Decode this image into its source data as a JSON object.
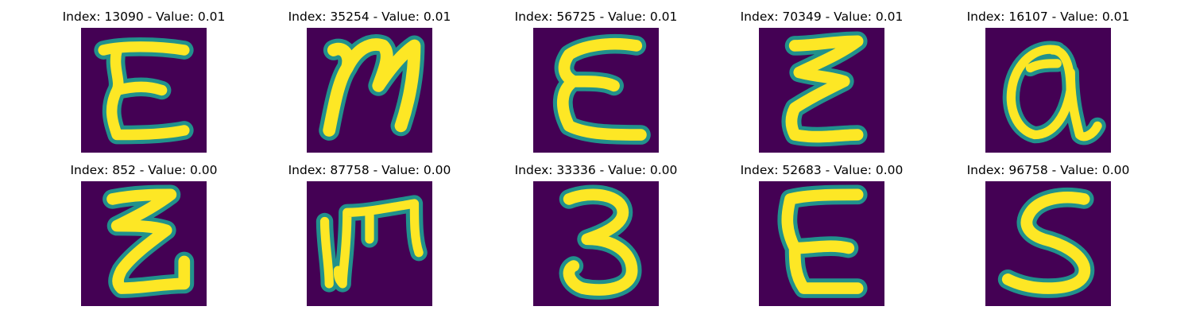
{
  "figure": {
    "colormap": "viridis",
    "background_color": "#440154",
    "stroke_outer_color": "#21918c",
    "stroke_inner_color": "#fde725",
    "panels": [
      {
        "title": "Index: 13090 - Value: 0.01",
        "glyph": "E-curly"
      },
      {
        "title": "Index: 35254 - Value: 0.01",
        "glyph": "N-script"
      },
      {
        "title": "Index: 56725 - Value: 0.01",
        "glyph": "E-round"
      },
      {
        "title": "Index: 70349 - Value: 0.01",
        "glyph": "Z-E-zigzag"
      },
      {
        "title": "Index: 16107 - Value: 0.01",
        "glyph": "a-loop"
      },
      {
        "title": "Index: 852 - Value: 0.00",
        "glyph": "Z-zigzag"
      },
      {
        "title": "Index: 87758 - Value: 0.00",
        "glyph": "M-E-sideways"
      },
      {
        "title": "Index: 33336 - Value: 0.00",
        "glyph": "3"
      },
      {
        "title": "Index: 52683 - Value: 0.00",
        "glyph": "E"
      },
      {
        "title": "Index: 96758 - Value: 0.00",
        "glyph": "S"
      }
    ]
  }
}
